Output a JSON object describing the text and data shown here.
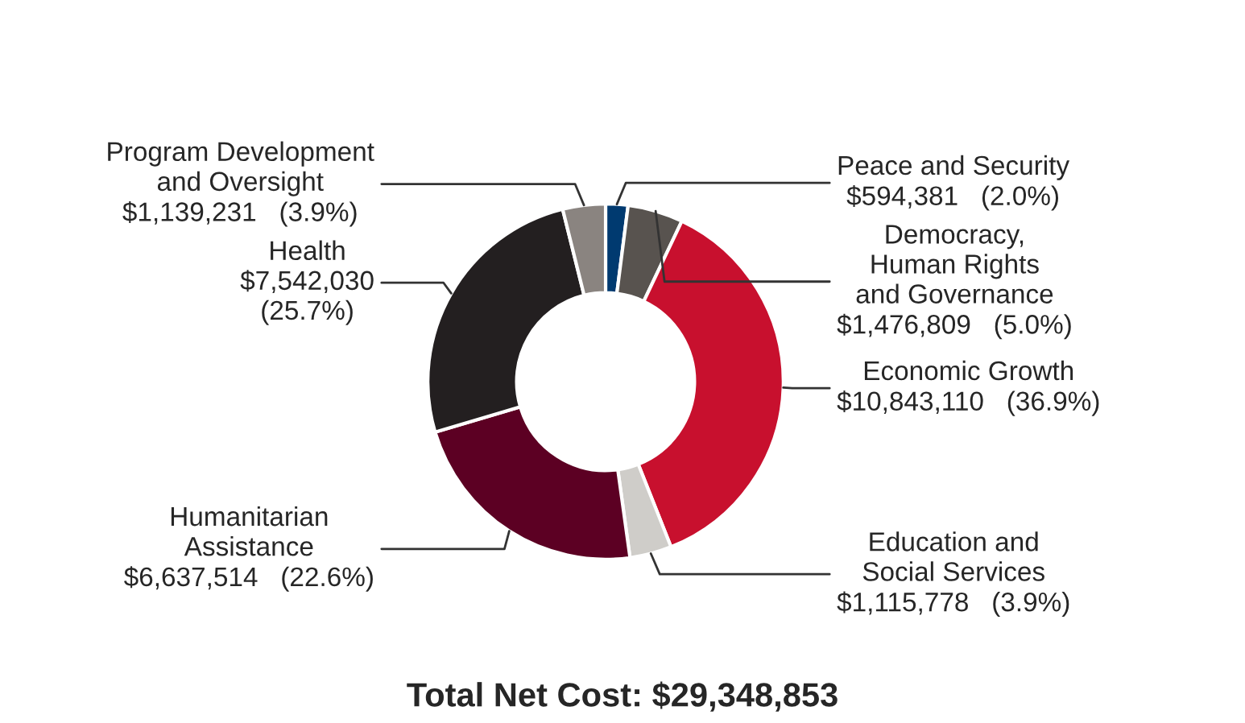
{
  "chart_data": {
    "type": "donut",
    "categories": [
      "Peace and Security",
      "Democracy,\nHuman Rights\nand Governance",
      "Economic Growth",
      "Education and\nSocial Services",
      "Humanitarian\nAssistance",
      "Health",
      "Program Development\nand Oversight"
    ],
    "values": [
      594381,
      1476809,
      10843110,
      1115778,
      6637514,
      7542030,
      1139231
    ],
    "colors": [
      "#003a70",
      "#58534f",
      "#c8102e",
      "#cfcdc9",
      "#5c0023",
      "#231f20",
      "#8a8480"
    ],
    "value_labels": [
      "$594,381   (2.0%)",
      "$1,476,809   (5.0%)",
      "$10,843,110   (36.9%)",
      "$1,115,778   (3.9%)",
      "$6,637,514   (22.6%)",
      "$7,542,030\n(25.7%)",
      "$1,139,231   (3.9%)"
    ],
    "annotations": [
      "Total Net Cost: $29,348,853"
    ]
  }
}
